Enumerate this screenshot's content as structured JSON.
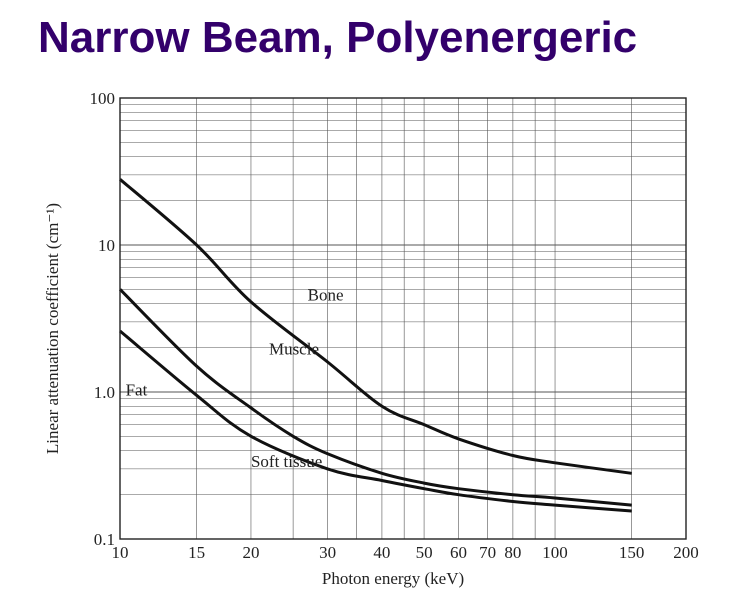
{
  "slide": {
    "title": "Narrow Beam, Polyenergeric"
  },
  "chart_data": {
    "type": "line",
    "xscale": "log",
    "yscale": "log",
    "xlim": [
      10,
      200
    ],
    "ylim": [
      0.1,
      100
    ],
    "xlabel": "Photon energy (keV)",
    "ylabel": "Linear attenuation coefficient (cm⁻¹)",
    "x_ticks": [
      {
        "value": 10,
        "label": "10"
      },
      {
        "value": 15,
        "label": "15"
      },
      {
        "value": 20,
        "label": "20"
      },
      {
        "value": 30,
        "label": "30"
      },
      {
        "value": 40,
        "label": "40"
      },
      {
        "value": 50,
        "label": "50"
      },
      {
        "value": 60,
        "label": "60"
      },
      {
        "value": 70,
        "label": "70"
      },
      {
        "value": 80,
        "label": "80"
      },
      {
        "value": 100,
        "label": "100"
      },
      {
        "value": 150,
        "label": "150"
      },
      {
        "value": 200,
        "label": "200"
      }
    ],
    "y_ticks": [
      {
        "value": 0.1,
        "label": "0.1"
      },
      {
        "value": 1,
        "label": "1.0"
      },
      {
        "value": 10,
        "label": "10"
      },
      {
        "value": 100,
        "label": "100"
      }
    ],
    "grid": true,
    "series": [
      {
        "name": "Bone",
        "x": [
          10,
          15,
          20,
          30,
          40,
          50,
          60,
          80,
          100,
          150
        ],
        "y": [
          28,
          10,
          4.1,
          1.6,
          0.8,
          0.6,
          0.48,
          0.37,
          0.33,
          0.28
        ]
      },
      {
        "name": "Muscle",
        "x": [
          10,
          15,
          20,
          25,
          30,
          40,
          50,
          60,
          80,
          100,
          150
        ],
        "y": [
          5.0,
          1.5,
          0.78,
          0.5,
          0.38,
          0.28,
          0.24,
          0.22,
          0.2,
          0.19,
          0.17
        ]
      },
      {
        "name": "Fat",
        "x": [
          10,
          15,
          20,
          30,
          40,
          50,
          60,
          80,
          100,
          150
        ],
        "y": [
          2.6,
          0.95,
          0.5,
          0.3,
          0.25,
          0.22,
          0.2,
          0.18,
          0.17,
          0.155
        ]
      }
    ],
    "annotations": [
      {
        "text": "Bone",
        "x": 27,
        "y": 4.2
      },
      {
        "text": "Muscle",
        "x": 22,
        "y": 1.8
      },
      {
        "text": "Fat",
        "x": 10.3,
        "y": 0.95
      },
      {
        "text": "Soft tissue",
        "x": 20,
        "y": 0.31
      }
    ]
  }
}
